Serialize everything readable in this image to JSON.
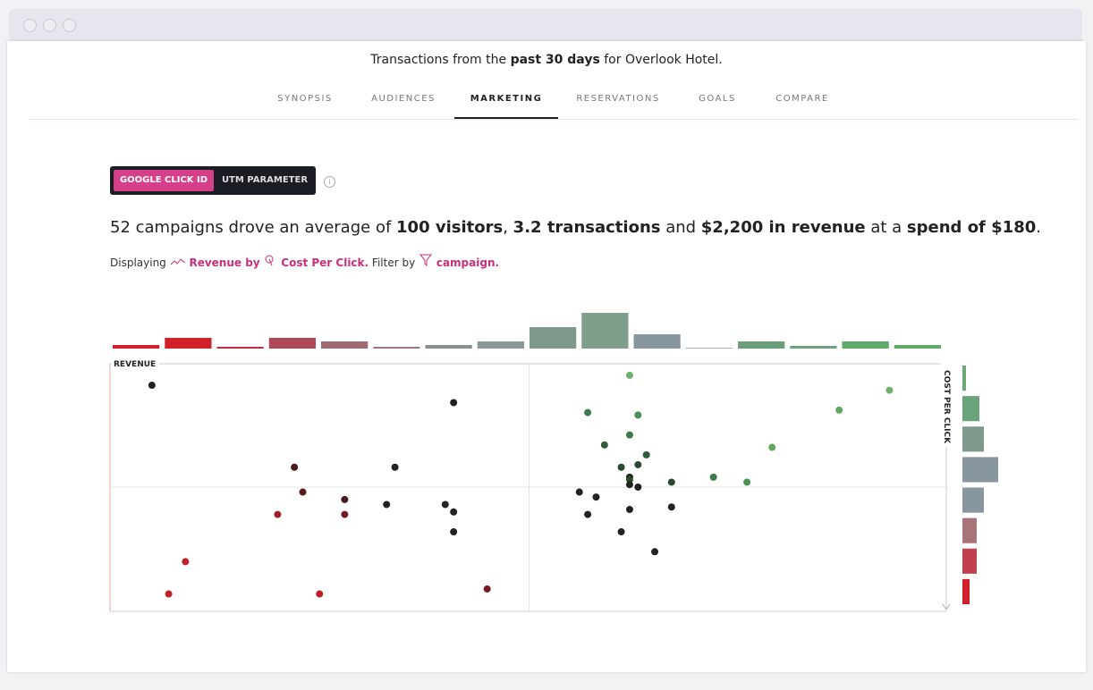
{
  "header": {
    "parts": [
      {
        "text": "Transactions from the ",
        "bold": false
      },
      {
        "text": "past 30 days",
        "bold": true
      },
      {
        "text": " for Overlook Hotel.",
        "bold": false
      }
    ]
  },
  "tabs": {
    "items": [
      "SYNOPSIS",
      "AUDIENCES",
      "MARKETING",
      "RESERVATIONS",
      "GOALS",
      "COMPARE"
    ],
    "active": 2
  },
  "toggle": {
    "options": [
      "GOOGLE CLICK ID",
      "UTM PARAMETER"
    ],
    "active": 0
  },
  "sentence": [
    {
      "text": "52 campaigns drove an average of ",
      "bold": false
    },
    {
      "text": "100 visitors",
      "bold": true
    },
    {
      "text": ", ",
      "bold": false
    },
    {
      "text": "3.2 transactions",
      "bold": true
    },
    {
      "text": " and ",
      "bold": false
    },
    {
      "text": "$2,200 in revenue",
      "bold": true
    },
    {
      "text": " at a ",
      "bold": false
    },
    {
      "text": "spend of $180",
      "bold": true
    },
    {
      "text": ".",
      "bold": false
    }
  ],
  "display": {
    "prefix": "Displaying",
    "metric": "Revenue by",
    "dimension": "Cost Per Click.",
    "filter_prefix": "Filter by",
    "filter": "campaign."
  },
  "chart_data": {
    "type": "scatter",
    "x_label": "REVENUE",
    "y_label": "COST PER CLICK",
    "xlim": [
      0,
      100
    ],
    "ylim": [
      0,
      100
    ],
    "xticks": [
      50
    ],
    "yticks": [
      50
    ],
    "x": [
      5,
      41,
      62,
      93,
      87,
      57,
      63,
      62,
      59,
      64,
      79,
      22,
      34,
      61,
      63,
      62,
      62,
      72,
      67,
      76,
      62,
      63,
      56,
      58,
      23,
      28,
      33,
      40,
      41,
      20,
      28,
      57,
      62,
      67,
      41,
      61,
      65,
      9,
      7,
      25,
      45
    ],
    "y": [
      91,
      84,
      95,
      89,
      81,
      80,
      79,
      71,
      67,
      63,
      66,
      58,
      58,
      58,
      59,
      54,
      53,
      54,
      52,
      52,
      51,
      50,
      48,
      46,
      48,
      45,
      43,
      43,
      40,
      39,
      39,
      39,
      41,
      42,
      32,
      32,
      24,
      20,
      7,
      7,
      9
    ],
    "colors": [
      "#222222",
      "#222222",
      "#6db36d",
      "#6db36d",
      "#5fa85f",
      "#3d7a4a",
      "#4a8f55",
      "#3d7a4a",
      "#2f5e3a",
      "#2f5e3a",
      "#5fa85f",
      "#4a1a1a",
      "#222222",
      "#2a4a30",
      "#2a4a30",
      "#222222",
      "#2a4a30",
      "#3d7a4a",
      "#2a4a30",
      "#4a8f55",
      "#222222",
      "#222222",
      "#222222",
      "#222222",
      "#5a1a1a",
      "#4a1a1a",
      "#222222",
      "#222222",
      "#222222",
      "#a0202a",
      "#7a1a20",
      "#222222",
      "#222222",
      "#222222",
      "#222222",
      "#222222",
      "#222222",
      "#c0202a",
      "#c0202a",
      "#c0202a",
      "#7a1a20"
    ],
    "top_histogram": {
      "counts": [
        4,
        12,
        2,
        12,
        8,
        2,
        4,
        8,
        24,
        40,
        16,
        1,
        8,
        3,
        8,
        4
      ],
      "colors": [
        "#d0202a",
        "#d0202a",
        "#c03040",
        "#b04858",
        "#a06a72",
        "#a07880",
        "#8a9090",
        "#8a9898",
        "#7f9a8a",
        "#809e8c",
        "#8896a0",
        "#a8b0b0",
        "#6a9e78",
        "#6aa37a",
        "#5faa6a",
        "#60a868"
      ]
    },
    "right_histogram": {
      "counts": [
        4,
        19,
        24,
        40,
        24,
        16,
        16,
        8
      ],
      "colors": [
        "#6aaa78",
        "#6aa37a",
        "#7f9a8a",
        "#8896a0",
        "#8896a0",
        "#a87478",
        "#c04050",
        "#d0202a"
      ]
    }
  }
}
